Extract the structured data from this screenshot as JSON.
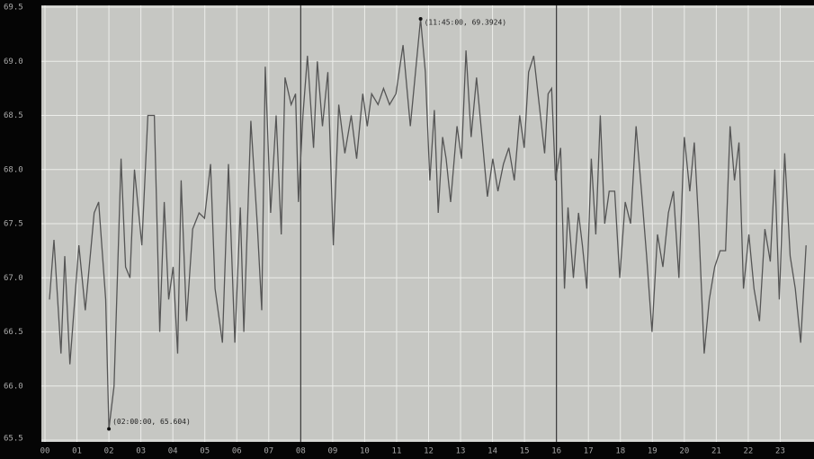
{
  "chart_data": {
    "type": "line",
    "x": [
      0.14,
      0.28,
      0.5,
      0.62,
      0.78,
      1.06,
      1.26,
      1.54,
      1.68,
      1.9,
      2.0,
      2.16,
      2.38,
      2.52,
      2.66,
      2.8,
      3.03,
      3.22,
      3.42,
      3.59,
      3.73,
      3.87,
      4.01,
      4.15,
      4.26,
      4.43,
      4.62,
      4.82,
      4.99,
      5.18,
      5.32,
      5.55,
      5.74,
      5.94,
      6.11,
      6.22,
      6.44,
      6.64,
      6.78,
      6.89,
      7.06,
      7.23,
      7.39,
      7.51,
      7.7,
      7.84,
      7.93,
      8.07,
      8.21,
      8.4,
      8.52,
      8.68,
      8.85,
      9.02,
      9.19,
      9.38,
      9.58,
      9.75,
      9.94,
      10.08,
      10.22,
      10.42,
      10.59,
      10.78,
      10.98,
      11.2,
      11.43,
      11.75,
      11.9,
      12.04,
      12.18,
      12.3,
      12.44,
      12.55,
      12.69,
      12.89,
      13.03,
      13.17,
      13.33,
      13.5,
      13.67,
      13.84,
      14.01,
      14.17,
      14.34,
      14.51,
      14.68,
      14.85,
      14.99,
      15.13,
      15.29,
      15.46,
      15.63,
      15.74,
      15.85,
      15.97,
      16.13,
      16.25,
      16.36,
      16.53,
      16.69,
      16.81,
      16.95,
      17.09,
      17.23,
      17.37,
      17.51,
      17.65,
      17.82,
      17.98,
      18.15,
      18.32,
      18.49,
      18.66,
      18.82,
      18.99,
      19.16,
      19.33,
      19.5,
      19.66,
      19.83,
      20.0,
      20.17,
      20.31,
      20.45,
      20.62,
      20.78,
      20.95,
      21.12,
      21.29,
      21.43,
      21.57,
      21.71,
      21.85,
      22.02,
      22.18,
      22.35,
      22.52,
      22.69,
      22.83,
      22.97,
      23.14,
      23.31,
      23.47,
      23.64,
      23.81
    ],
    "series": [
      {
        "color": "#555555",
        "values": [
          66.8,
          67.35,
          66.3,
          67.2,
          66.2,
          67.3,
          66.7,
          67.6,
          67.7,
          66.8,
          65.604,
          66.0,
          68.1,
          67.1,
          67.0,
          68.0,
          67.3,
          68.5,
          68.5,
          66.5,
          67.7,
          66.8,
          67.1,
          66.3,
          67.9,
          66.6,
          67.45,
          67.6,
          67.55,
          68.05,
          66.9,
          66.4,
          68.05,
          66.4,
          67.65,
          66.5,
          68.45,
          67.5,
          66.7,
          68.95,
          67.6,
          68.5,
          67.4,
          68.85,
          68.6,
          68.7,
          67.7,
          68.5,
          69.05,
          68.2,
          69.0,
          68.4,
          68.9,
          67.3,
          68.6,
          68.15,
          68.5,
          68.1,
          68.7,
          68.4,
          68.7,
          68.6,
          68.75,
          68.6,
          68.7,
          69.15,
          68.4,
          69.3924,
          68.9,
          67.9,
          68.55,
          67.6,
          68.3,
          68.1,
          67.7,
          68.4,
          68.1,
          69.1,
          68.3,
          68.85,
          68.3,
          67.75,
          68.1,
          67.8,
          68.05,
          68.2,
          67.9,
          68.5,
          68.2,
          68.9,
          69.05,
          68.6,
          68.15,
          68.7,
          68.75,
          67.9,
          68.2,
          66.9,
          67.65,
          67.0,
          67.6,
          67.3,
          66.9,
          68.1,
          67.4,
          68.5,
          67.5,
          67.8,
          67.8,
          67.0,
          67.7,
          67.5,
          68.4,
          67.8,
          67.2,
          66.5,
          67.4,
          67.1,
          67.6,
          67.8,
          67.0,
          68.3,
          67.8,
          68.25,
          67.5,
          66.3,
          66.8,
          67.1,
          67.25,
          67.25,
          68.4,
          67.9,
          68.25,
          66.9,
          67.4,
          66.9,
          66.6,
          67.45,
          67.15,
          68.0,
          66.8,
          68.15,
          67.2,
          66.9,
          66.4,
          67.3
        ]
      }
    ],
    "annotations": [
      {
        "x": 2,
        "y": 65.604,
        "label": "(02:00:00, 65.604)"
      },
      {
        "x": 11.75,
        "y": 69.3924,
        "label": "(11:45:00, 69.3924)"
      }
    ],
    "markers": [
      8,
      16
    ],
    "xlim": [
      0,
      24
    ],
    "xticks": [
      {
        "value": 0,
        "label": "00"
      },
      {
        "value": 1,
        "label": "01"
      },
      {
        "value": 2,
        "label": "02"
      },
      {
        "value": 3,
        "label": "03"
      },
      {
        "value": 4,
        "label": "04"
      },
      {
        "value": 5,
        "label": "05"
      },
      {
        "value": 6,
        "label": "06"
      },
      {
        "value": 7,
        "label": "07"
      },
      {
        "value": 8,
        "label": "08"
      },
      {
        "value": 9,
        "label": "09"
      },
      10,
      11,
      12,
      13,
      14,
      15,
      16,
      17,
      18,
      19,
      20,
      21,
      22,
      23
    ],
    "ylim": [
      65.5,
      69.5
    ],
    "yticks": [
      65.5,
      {
        "value": 66,
        "label": "66.0"
      },
      66.5,
      {
        "value": 67,
        "label": "67.0"
      },
      67.5,
      {
        "value": 68,
        "label": "68.0"
      },
      68.5,
      {
        "value": 69,
        "label": "69.0"
      },
      69.5
    ],
    "grid": true
  }
}
